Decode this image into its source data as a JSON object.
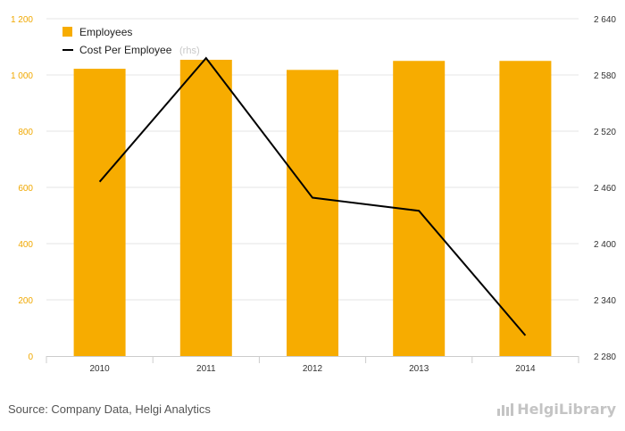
{
  "chart_data": {
    "type": "bar",
    "categories": [
      "2010",
      "2011",
      "2012",
      "2013",
      "2014"
    ],
    "series": [
      {
        "name": "Employees",
        "type": "bar",
        "axis": "left",
        "color": "#f7ac00",
        "values": [
          1022,
          1054,
          1018,
          1050,
          1050
        ]
      },
      {
        "name": "Cost Per Employee",
        "type": "line",
        "axis": "right",
        "color": "#000000",
        "values": [
          2466,
          2598,
          2449,
          2435,
          2302
        ]
      }
    ],
    "left_axis": {
      "ylim": [
        0,
        1200
      ],
      "ticks": [
        0,
        200,
        400,
        600,
        800,
        1000,
        1200
      ],
      "tick_labels": [
        "0",
        "200",
        "400",
        "600",
        "800",
        "1 000",
        "1 200"
      ],
      "label_color": "#f0a800"
    },
    "right_axis": {
      "ylim": [
        2280,
        2640
      ],
      "ticks": [
        2280,
        2340,
        2400,
        2460,
        2520,
        2580,
        2640
      ],
      "tick_labels": [
        "2 280",
        "2 340",
        "2 400",
        "2 460",
        "2 520",
        "2 580",
        "2 640"
      ],
      "label_color": "#333333"
    },
    "legend": {
      "placement": "top-left",
      "items": [
        "Employees",
        "Cost Per Employee"
      ],
      "rhs_note": "(rhs)"
    },
    "grid": true
  },
  "footer": {
    "source": "Source: Company Data, Helgi Analytics",
    "brand": "HelgiLibrary"
  }
}
